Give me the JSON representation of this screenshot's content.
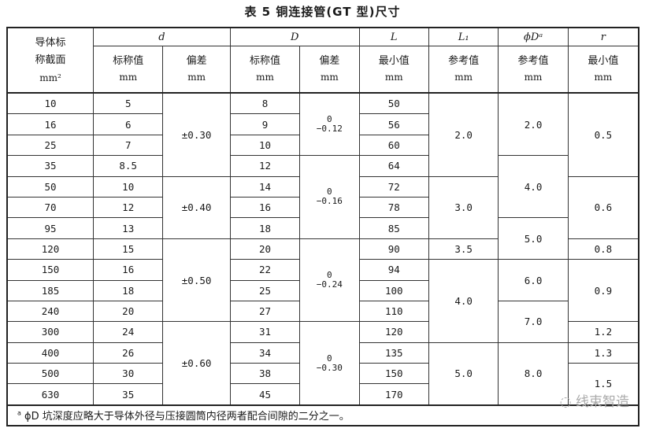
{
  "title": "表 5   铜连接管(GT 型)尺寸",
  "header": {
    "col0": [
      "导体标",
      "称截面",
      "mm²"
    ],
    "d": "d",
    "D": "D",
    "L": "L",
    "L1": "L₁",
    "phiD": "ϕDᵃ",
    "r": "r",
    "d_nom": [
      "标称值",
      "mm"
    ],
    "d_tol": [
      "偏差",
      "mm"
    ],
    "D_nom": [
      "标称值",
      "mm"
    ],
    "D_tol": [
      "偏差",
      "mm"
    ],
    "L_min": [
      "最小值",
      "mm"
    ],
    "L1_ref": [
      "参考值",
      "mm"
    ],
    "phiD_ref": [
      "参考值",
      "mm"
    ],
    "r_min": [
      "最小值",
      "mm"
    ]
  },
  "rows": {
    "section": [
      "10",
      "16",
      "25",
      "35",
      "50",
      "70",
      "95",
      "120",
      "150",
      "185",
      "240",
      "300",
      "400",
      "500",
      "630"
    ],
    "d_nom": [
      "5",
      "6",
      "7",
      "8.5",
      "10",
      "12",
      "13",
      "15",
      "16",
      "18",
      "20",
      "24",
      "26",
      "30",
      "35"
    ],
    "D_nom": [
      "8",
      "9",
      "10",
      "12",
      "14",
      "16",
      "18",
      "20",
      "22",
      "25",
      "27",
      "31",
      "34",
      "38",
      "45"
    ],
    "L_min": [
      "50",
      "56",
      "60",
      "64",
      "72",
      "78",
      "85",
      "90",
      "94",
      "100",
      "110",
      "120",
      "135",
      "150",
      "170"
    ]
  },
  "groups": {
    "d_tol": [
      {
        "value": "±0.30",
        "span": 4
      },
      {
        "value": "±0.40",
        "span": 3
      },
      {
        "value": "±0.50",
        "span": 4
      },
      {
        "value": "±0.60",
        "span": 4
      }
    ],
    "D_tol": [
      {
        "value": "0\n−0.12",
        "span": 3
      },
      {
        "value": "0\n−0.16",
        "span": 4
      },
      {
        "value": "0\n−0.24",
        "span": 4
      },
      {
        "value": "0\n−0.30",
        "span": 4
      }
    ],
    "L1": [
      {
        "value": "2.0",
        "span": 4
      },
      {
        "value": "3.0",
        "span": 3
      },
      {
        "value": "3.5",
        "span": 1
      },
      {
        "value": "4.0",
        "span": 4
      },
      {
        "value": "5.0",
        "span": 3
      }
    ],
    "phiD": [
      {
        "value": "2.0",
        "span": 3
      },
      {
        "value": "4.0",
        "span": 3
      },
      {
        "value": "5.0",
        "span": 2
      },
      {
        "value": "6.0",
        "span": 2
      },
      {
        "value": "7.0",
        "span": 2
      },
      {
        "value": "8.0",
        "span": 3
      }
    ],
    "r": [
      {
        "value": "0.5",
        "span": 4
      },
      {
        "value": "0.6",
        "span": 3
      },
      {
        "value": "0.8",
        "span": 1
      },
      {
        "value": "0.9",
        "span": 3
      },
      {
        "value": "1.2",
        "span": 1
      },
      {
        "value": "1.3",
        "span": 1
      },
      {
        "value": "1.5",
        "span": 2
      }
    ]
  },
  "footnote": {
    "mark": "a",
    "text": "ϕD 坑深度应略大于导体外径与压接圆筒内径两者配合间隙的二分之一。"
  },
  "watermark": "线束智造"
}
